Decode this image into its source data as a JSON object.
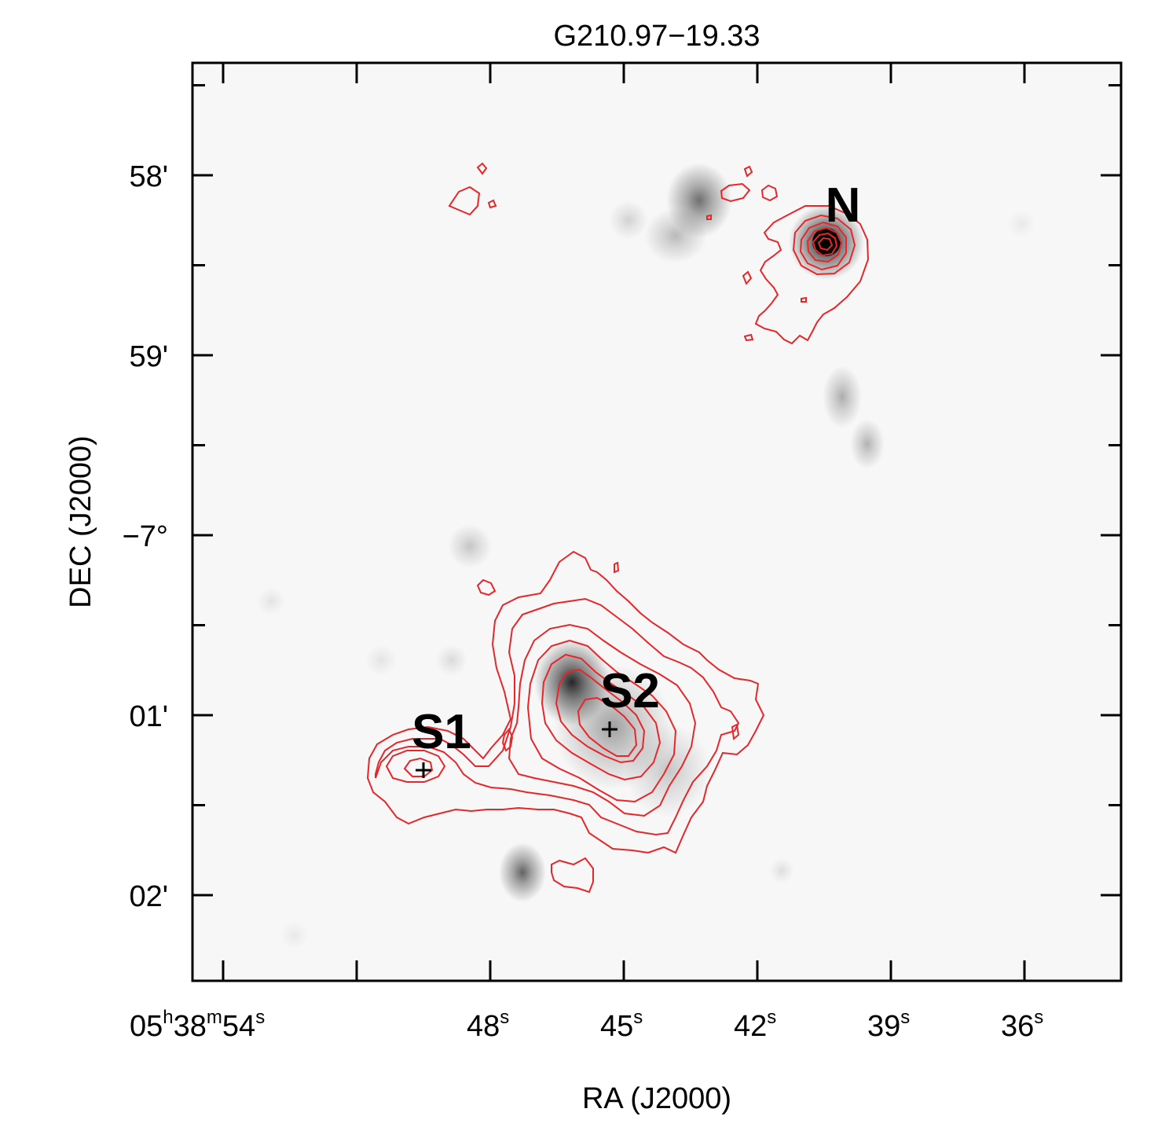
{
  "chart_data": {
    "type": "heatmap",
    "title": "G210.97−19.33",
    "xlabel": "RA (J2000)",
    "ylabel": "DEC (J2000)",
    "colormap": "grayscale (inverted, dark = bright emission)",
    "contour_color": "#e8262a",
    "marker_color": "#000000",
    "x_ticks": [
      {
        "label_main": "05",
        "sup_h": "h",
        "mid": "38",
        "sup_m": "m",
        "end": "54",
        "sup_s": "s",
        "value_s": 54
      },
      {
        "label_main": "48",
        "sup_s": "s",
        "value_s": 48
      },
      {
        "label_main": "45",
        "sup_s": "s",
        "value_s": 45
      },
      {
        "label_main": "42",
        "sup_s": "s",
        "value_s": 42
      },
      {
        "label_main": "39",
        "sup_s": "s",
        "value_s": 39
      },
      {
        "label_main": "36",
        "sup_s": "s",
        "value_s": 36
      }
    ],
    "y_ticks": [
      {
        "label": "58'",
        "value_arcmin": -58
      },
      {
        "label": "59'",
        "value_arcmin": -59
      },
      {
        "label": "−7°",
        "value_arcmin": -60
      },
      {
        "label": "01'",
        "value_arcmin": -61
      },
      {
        "label": "02'",
        "value_arcmin": -62
      }
    ],
    "sources": [
      {
        "name": "N"
      },
      {
        "name": "S1"
      },
      {
        "name": "S2"
      }
    ]
  }
}
